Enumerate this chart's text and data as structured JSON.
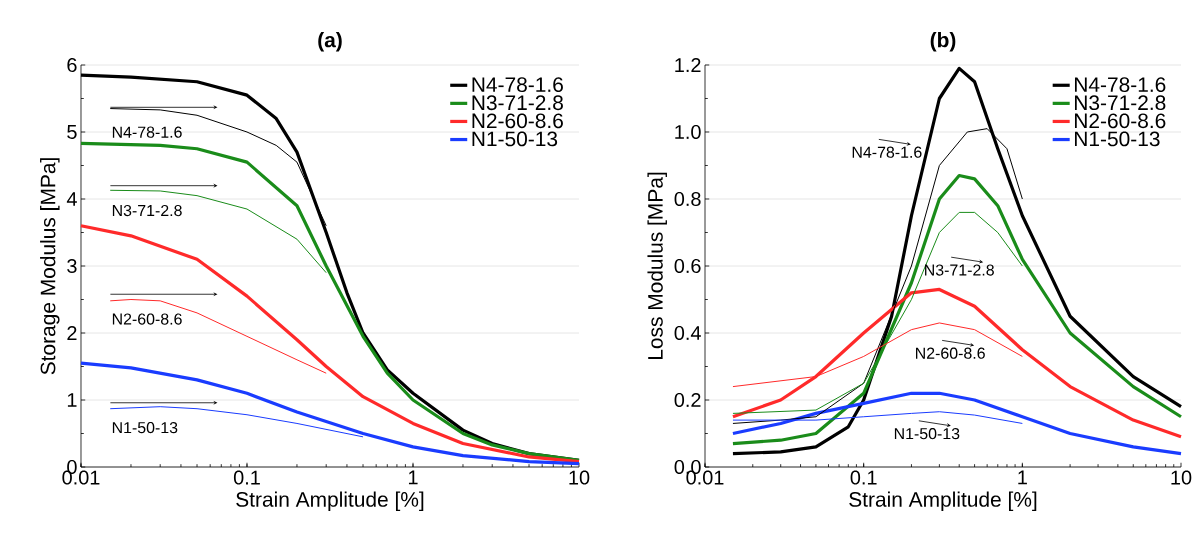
{
  "chart_data": [
    {
      "type": "line",
      "title": "**(a)**",
      "xlabel": "Strain Amplitude [%]",
      "ylabel": "Storage Modulus [MPa]",
      "log": "x",
      "grid": "y",
      "legend": "top right",
      "xlim": [
        0.01,
        10
      ],
      "xticks": [
        0.01,
        0.1,
        1,
        10
      ],
      "ylim": [
        0,
        6
      ],
      "yticks": [
        0,
        1,
        2,
        3,
        4,
        5,
        6
      ],
      "series": [
        {
          "name": "N4-78-1.6",
          "color": "#000000",
          "x": [
            0.01,
            0.02,
            0.05,
            0.1,
            0.15,
            0.2,
            0.3,
            0.4,
            0.5,
            0.7,
            1,
            2,
            3,
            5,
            10
          ],
          "values": [
            5.85,
            5.82,
            5.75,
            5.55,
            5.2,
            4.7,
            3.5,
            2.6,
            2.0,
            1.45,
            1.1,
            0.55,
            0.35,
            0.2,
            0.1
          ]
        },
        {
          "name": "N3-71-2.8",
          "color": "#1a8c1a",
          "x": [
            0.01,
            0.03,
            0.05,
            0.1,
            0.2,
            0.3,
            0.5,
            0.7,
            1,
            2,
            3,
            5,
            10
          ],
          "values": [
            4.83,
            4.8,
            4.75,
            4.55,
            3.9,
            3.0,
            1.95,
            1.4,
            1.0,
            0.5,
            0.33,
            0.2,
            0.1
          ]
        },
        {
          "name": "N2-60-8.6",
          "color": "#ff2a2a",
          "x": [
            0.01,
            0.02,
            0.05,
            0.1,
            0.2,
            0.3,
            0.5,
            1,
            2,
            5,
            10
          ],
          "values": [
            3.6,
            3.45,
            3.1,
            2.55,
            1.9,
            1.5,
            1.05,
            0.65,
            0.35,
            0.15,
            0.08
          ]
        },
        {
          "name": "N1-50-13",
          "color": "#1a3cff",
          "x": [
            0.01,
            0.02,
            0.05,
            0.1,
            0.2,
            0.5,
            1,
            2,
            5,
            10
          ],
          "values": [
            1.55,
            1.48,
            1.3,
            1.1,
            0.82,
            0.5,
            0.3,
            0.17,
            0.08,
            0.05
          ]
        },
        {
          "color": "#000000",
          "x": [
            0.015,
            0.03,
            0.05,
            0.1,
            0.15,
            0.2,
            0.3
          ],
          "values": [
            5.35,
            5.33,
            5.25,
            5.0,
            4.8,
            4.55,
            3.6
          ]
        },
        {
          "color": "#1a8c1a",
          "x": [
            0.015,
            0.03,
            0.05,
            0.1,
            0.2,
            0.3
          ],
          "values": [
            4.13,
            4.12,
            4.05,
            3.85,
            3.4,
            2.9
          ]
        },
        {
          "color": "#ff2a2a",
          "x": [
            0.015,
            0.02,
            0.03,
            0.05,
            0.1,
            0.2,
            0.3
          ],
          "values": [
            2.48,
            2.5,
            2.48,
            2.3,
            1.95,
            1.6,
            1.4
          ]
        },
        {
          "color": "#1a3cff",
          "x": [
            0.015,
            0.03,
            0.05,
            0.1,
            0.2,
            0.5
          ],
          "values": [
            0.87,
            0.9,
            0.87,
            0.78,
            0.65,
            0.45
          ]
        }
      ],
      "annotations": [
        "N4-78-1.6",
        "N3-71-2.8",
        "N2-60-8.6",
        "N1-50-13"
      ]
    },
    {
      "type": "line",
      "title": "**(b)**",
      "xlabel": "Strain Amplitude [%]",
      "ylabel": "Loss Modulus [MPa]",
      "log": "x",
      "grid": "y",
      "legend": "top right",
      "xlim": [
        0.01,
        10
      ],
      "xticks": [
        0.01,
        0.1,
        1,
        10
      ],
      "ylim": [
        0,
        1.2
      ],
      "yticks": [
        {
          "value": 0,
          "label": "0.0"
        },
        0.2,
        0.4,
        0.6,
        0.8,
        {
          "value": 1,
          "label": "1.0"
        },
        1.2
      ],
      "series": [
        {
          "name": "N4-78-1.6",
          "color": "#000000",
          "x": [
            0.015,
            0.03,
            0.05,
            0.08,
            0.1,
            0.15,
            0.2,
            0.3,
            0.4,
            0.5,
            0.7,
            1,
            2,
            5,
            10
          ],
          "values": [
            0.04,
            0.045,
            0.06,
            0.12,
            0.2,
            0.45,
            0.75,
            1.1,
            1.19,
            1.15,
            0.95,
            0.75,
            0.45,
            0.27,
            0.18
          ]
        },
        {
          "name": "N3-71-2.8",
          "color": "#1a8c1a",
          "x": [
            0.015,
            0.03,
            0.05,
            0.1,
            0.2,
            0.3,
            0.4,
            0.5,
            0.7,
            1,
            2,
            5,
            10
          ],
          "values": [
            0.07,
            0.08,
            0.1,
            0.22,
            0.55,
            0.8,
            0.87,
            0.86,
            0.78,
            0.62,
            0.4,
            0.24,
            0.15
          ]
        },
        {
          "name": "N2-60-8.6",
          "color": "#ff2a2a",
          "x": [
            0.015,
            0.03,
            0.05,
            0.1,
            0.2,
            0.3,
            0.5,
            1,
            2,
            5,
            10
          ],
          "values": [
            0.15,
            0.2,
            0.27,
            0.4,
            0.52,
            0.53,
            0.48,
            0.35,
            0.24,
            0.14,
            0.09
          ]
        },
        {
          "name": "N1-50-13",
          "color": "#1a3cff",
          "x": [
            0.015,
            0.03,
            0.05,
            0.1,
            0.2,
            0.3,
            0.5,
            1,
            2,
            5,
            10
          ],
          "values": [
            0.1,
            0.13,
            0.16,
            0.19,
            0.22,
            0.22,
            0.2,
            0.15,
            0.1,
            0.06,
            0.04
          ]
        },
        {
          "color": "#000000",
          "x": [
            0.015,
            0.03,
            0.05,
            0.1,
            0.2,
            0.3,
            0.45,
            0.6,
            0.8,
            1
          ],
          "values": [
            0.13,
            0.14,
            0.15,
            0.25,
            0.6,
            0.9,
            1.0,
            1.01,
            0.95,
            0.8
          ]
        },
        {
          "color": "#1a8c1a",
          "x": [
            0.015,
            0.05,
            0.1,
            0.2,
            0.3,
            0.4,
            0.5,
            0.7,
            1
          ],
          "values": [
            0.16,
            0.17,
            0.25,
            0.5,
            0.7,
            0.76,
            0.76,
            0.7,
            0.6
          ]
        },
        {
          "color": "#ff2a2a",
          "x": [
            0.015,
            0.05,
            0.1,
            0.2,
            0.3,
            0.5,
            1
          ],
          "values": [
            0.24,
            0.27,
            0.33,
            0.41,
            0.43,
            0.41,
            0.33
          ]
        },
        {
          "color": "#1a3cff",
          "x": [
            0.015,
            0.05,
            0.1,
            0.2,
            0.3,
            0.5,
            1
          ],
          "values": [
            0.14,
            0.14,
            0.15,
            0.16,
            0.165,
            0.155,
            0.13
          ]
        }
      ],
      "annotations": [
        "N4-78-1.6",
        "N3-71-2.8",
        "N2-60-8.6",
        "N1-50-13"
      ]
    }
  ]
}
